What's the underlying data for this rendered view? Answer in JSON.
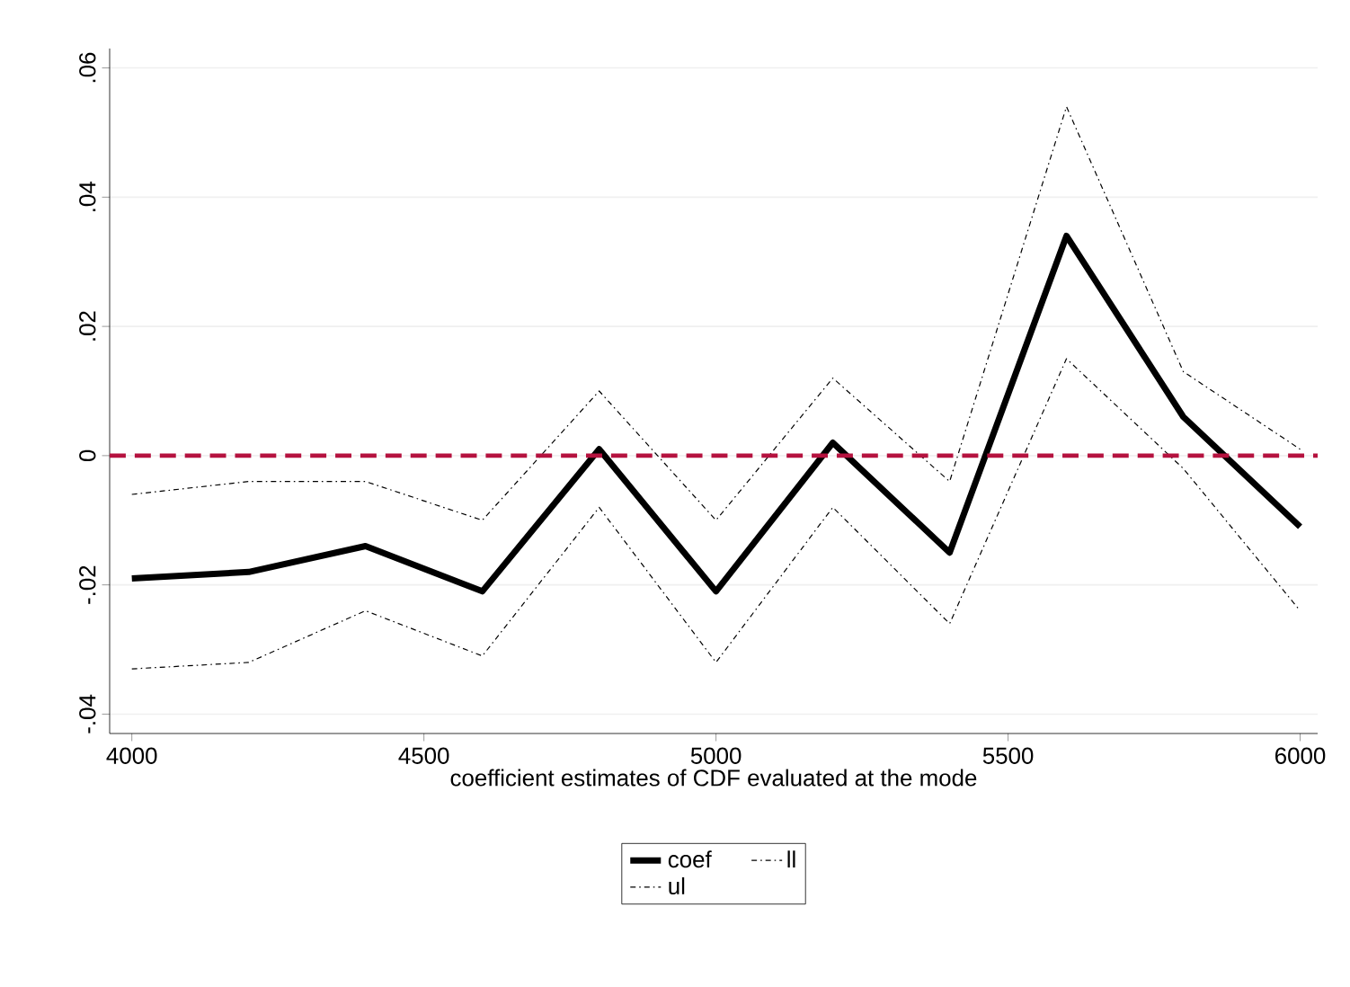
{
  "chart_data": {
    "type": "line",
    "xlabel": "coefficient estimates of CDF evaluated at the mode",
    "x": [
      4000,
      4200,
      4400,
      4600,
      4800,
      5000,
      5200,
      5400,
      5600,
      5800,
      6000
    ],
    "series": [
      {
        "name": "coef",
        "color": "#000000",
        "line_style": "solid",
        "values": [
          -0.019,
          -0.018,
          -0.014,
          -0.021,
          0.001,
          -0.021,
          0.002,
          -0.015,
          0.034,
          0.006,
          -0.011
        ]
      },
      {
        "name": "ll",
        "color": "#000000",
        "line_style": "dashed",
        "values": [
          -0.033,
          -0.032,
          -0.024,
          -0.031,
          -0.008,
          -0.032,
          -0.008,
          -0.026,
          0.015,
          -0.002,
          -0.024
        ]
      },
      {
        "name": "ul",
        "color": "#000000",
        "line_style": "dashed",
        "values": [
          -0.006,
          -0.004,
          -0.004,
          -0.01,
          0.01,
          -0.01,
          0.012,
          -0.004,
          0.054,
          0.013,
          0.001
        ]
      }
    ],
    "xlim": [
      3962,
      6030
    ],
    "ylim": [
      -0.043,
      0.063
    ],
    "xticks": [
      4000,
      4500,
      5000,
      5500,
      6000
    ],
    "yticks": [
      {
        "value": -0.04,
        "label": "-.04"
      },
      {
        "value": -0.02,
        "label": "-.02"
      },
      {
        "value": 0,
        "label": "0"
      },
      {
        "value": 0.02,
        "label": ".02"
      },
      {
        "value": 0.04,
        "label": ".04"
      },
      {
        "value": 0.06,
        "label": ".06"
      }
    ],
    "ref_lines": [
      {
        "axis": "y",
        "value": 0,
        "color": "#b5123f",
        "line_style": "dashed"
      }
    ],
    "grid": "y",
    "legend": "bottom",
    "marker": "none"
  }
}
